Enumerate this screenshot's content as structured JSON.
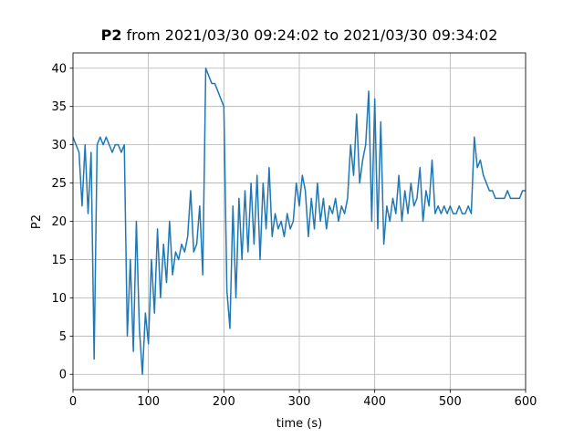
{
  "chart_data": {
    "type": "line",
    "title_parts": [
      "P2",
      "from 2021/03/30 09:24:02 to 2021/03/30 09:34:02"
    ],
    "x_label": "time (s)",
    "y_label": "P2",
    "xlim": [
      0,
      600
    ],
    "ylim": [
      -2,
      42
    ],
    "xticks": [
      0,
      100,
      200,
      300,
      400,
      500,
      600
    ],
    "yticks": [
      0,
      5,
      10,
      15,
      20,
      25,
      30,
      35,
      40
    ],
    "grid": true,
    "x": [
      0,
      4,
      8,
      12,
      16,
      20,
      24,
      28,
      32,
      36,
      40,
      44,
      48,
      52,
      56,
      60,
      64,
      68,
      72,
      76,
      80,
      84,
      88,
      92,
      96,
      100,
      104,
      108,
      112,
      116,
      120,
      124,
      128,
      132,
      136,
      140,
      144,
      148,
      152,
      156,
      160,
      164,
      168,
      172,
      176,
      180,
      184,
      188,
      192,
      196,
      200,
      204,
      208,
      212,
      216,
      220,
      224,
      228,
      232,
      236,
      240,
      244,
      248,
      252,
      256,
      260,
      264,
      268,
      272,
      276,
      280,
      284,
      288,
      292,
      296,
      300,
      304,
      308,
      312,
      316,
      320,
      324,
      328,
      332,
      336,
      340,
      344,
      348,
      352,
      356,
      360,
      364,
      368,
      372,
      376,
      380,
      384,
      388,
      392,
      396,
      400,
      404,
      408,
      412,
      416,
      420,
      424,
      428,
      432,
      436,
      440,
      444,
      448,
      452,
      456,
      460,
      464,
      468,
      472,
      476,
      480,
      484,
      488,
      492,
      496,
      500,
      504,
      508,
      512,
      516,
      520,
      524,
      528,
      532,
      536,
      540,
      544,
      548,
      552,
      556,
      560,
      564,
      568,
      572,
      576,
      580,
      584,
      588,
      592,
      596,
      600
    ],
    "series": [
      {
        "name": "P2",
        "color": "#1f77b4",
        "values": [
          31,
          30,
          29,
          22,
          30,
          21,
          29,
          2,
          30,
          31,
          30,
          31,
          30,
          29,
          30,
          30,
          29,
          30,
          5,
          15,
          3,
          20,
          6,
          0,
          8,
          4,
          15,
          8,
          19,
          10,
          17,
          12,
          20,
          13,
          16,
          15,
          17,
          16,
          18,
          24,
          16,
          17,
          22,
          13,
          40,
          39,
          38,
          38,
          37,
          36,
          35,
          11,
          6,
          22,
          10,
          23,
          15,
          24,
          16,
          25,
          17,
          26,
          15,
          25,
          19,
          27,
          18,
          21,
          19,
          20,
          18,
          21,
          19,
          20,
          25,
          22,
          26,
          24,
          18,
          23,
          19,
          25,
          20,
          23,
          19,
          22,
          21,
          23,
          20,
          22,
          21,
          23,
          30,
          26,
          34,
          25,
          28,
          30,
          37,
          20,
          36,
          19,
          33,
          17,
          22,
          20,
          23,
          21,
          26,
          20,
          24,
          21,
          25,
          22,
          23,
          27,
          20,
          24,
          22,
          28,
          21,
          22,
          21,
          22,
          21,
          22,
          21,
          21,
          22,
          21,
          21,
          22,
          21,
          31,
          27,
          28,
          26,
          25,
          24,
          24,
          23,
          23,
          23,
          23,
          24,
          23,
          23,
          23,
          23,
          24,
          24
        ]
      }
    ]
  }
}
